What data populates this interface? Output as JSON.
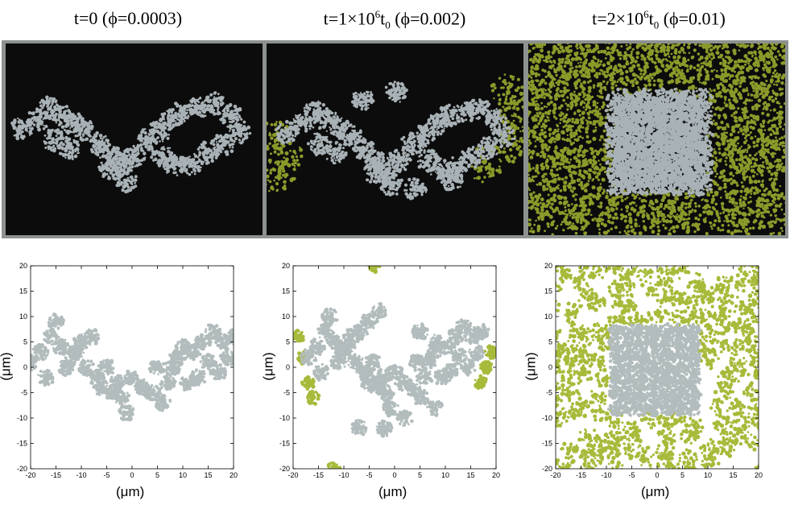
{
  "panels": [
    {
      "t_main": "t=0 (",
      "phi_sym": "ϕ",
      "phi_val": "=0.0003)"
    },
    {
      "t_prefix": "t=1×10",
      "t_exp": "6",
      "t_unit": "t",
      "t_sub": "0",
      "t_mid": " (",
      "phi_sym": "ϕ",
      "phi_val": "=0.002)"
    },
    {
      "t_prefix": "t=2×10",
      "t_exp": "6",
      "t_unit": "t",
      "t_sub": "0",
      "t_mid": " (",
      "phi_sym": "ϕ",
      "phi_val": "=0.01)"
    }
  ],
  "axes": {
    "xlabel": "(μm)",
    "ylabel": "(μm)",
    "ticks": [
      "-20",
      "-15",
      "-10",
      "-5",
      "0",
      "5",
      "10",
      "15",
      "20"
    ],
    "range": [
      -20,
      20
    ]
  },
  "colors": {
    "central_cluster": "#b2bcbd",
    "periodic_images": "#a8ba3a",
    "sim_background": "#0c0c0c",
    "sim_cluster": "#a9b2b6",
    "sim_images": "#8c9a2a",
    "frame": "#8d9290"
  }
}
